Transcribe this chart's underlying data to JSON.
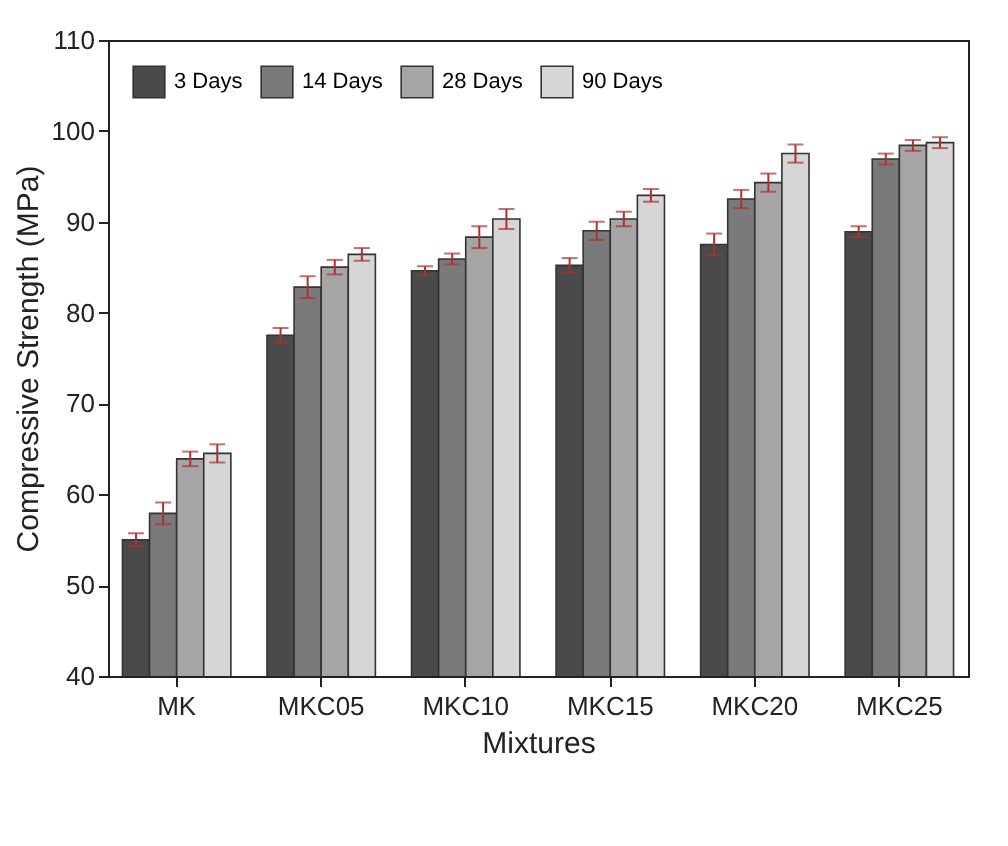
{
  "chart_data": {
    "type": "bar",
    "xlabel": "Mixtures",
    "ylabel": "Compressive Strength (MPa)",
    "categories": [
      "MK",
      "MKC05",
      "MKC10",
      "MKC15",
      "MKC20",
      "MKC25"
    ],
    "series": [
      {
        "name": "3 Days",
        "color": "#4a4a4a",
        "values": [
          55,
          77.5,
          84.6,
          85.2,
          87.5,
          88.9
        ],
        "errors": [
          0.7,
          0.8,
          0.5,
          0.8,
          1.2,
          0.6
        ]
      },
      {
        "name": "14 Days",
        "color": "#7a7a7a",
        "values": [
          57.9,
          82.8,
          85.9,
          89,
          92.5,
          96.9
        ],
        "errors": [
          1.2,
          1.2,
          0.6,
          1,
          1,
          0.6
        ]
      },
      {
        "name": "28 Days",
        "color": "#a5a5a5",
        "values": [
          63.9,
          85,
          88.3,
          90.3,
          94.3,
          98.4
        ],
        "errors": [
          0.8,
          0.8,
          1.2,
          0.8,
          1,
          0.6
        ]
      },
      {
        "name": "90 Days",
        "color": "#d6d6d6",
        "values": [
          64.5,
          86.4,
          90.3,
          92.9,
          97.5,
          98.7
        ],
        "errors": [
          1,
          0.7,
          1.1,
          0.7,
          1,
          0.6
        ]
      }
    ],
    "ylim": [
      40,
      110
    ],
    "yticks": [
      40,
      50,
      60,
      70,
      80,
      90,
      100,
      110
    ],
    "grid": false,
    "legend": "top left"
  }
}
